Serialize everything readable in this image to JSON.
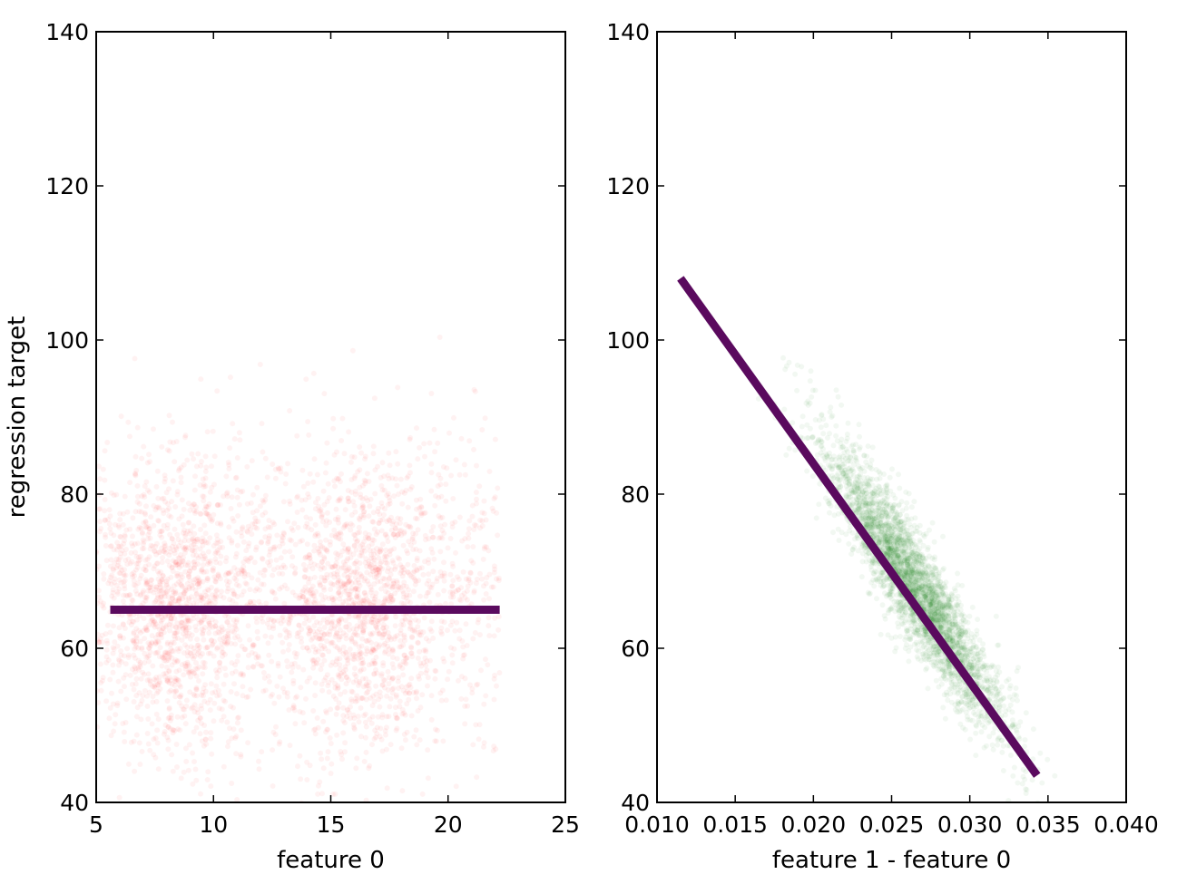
{
  "chart_data": [
    {
      "type": "scatter",
      "title": "",
      "xlabel": "feature 0",
      "ylabel": "regression target",
      "xlim": [
        5,
        25
      ],
      "ylim": [
        40,
        140
      ],
      "xticks": [
        5,
        10,
        15,
        20,
        25
      ],
      "xtick_labels": [
        "5",
        "10",
        "15",
        "20",
        "25"
      ],
      "yticks": [
        40,
        60,
        80,
        100,
        120,
        140
      ],
      "ytick_labels": [
        "40",
        "60",
        "80",
        "100",
        "120",
        "140"
      ],
      "grid": false,
      "series": [
        {
          "kind": "scatter",
          "color": "#ff0000",
          "opacity": 0.05,
          "x_range": [
            5,
            22.2
          ],
          "clusters": [
            {
              "x_center": 8.5,
              "y_center": 65,
              "y_spread": 9
            },
            {
              "x_center": 16.5,
              "y_center": 65,
              "y_spread": 9
            }
          ],
          "y_band": [
            48,
            95
          ]
        },
        {
          "kind": "fit-line",
          "color": "#5a0a5e",
          "x": [
            5.6,
            22.2
          ],
          "y": [
            65,
            65
          ]
        }
      ]
    },
    {
      "type": "scatter",
      "title": "",
      "xlabel": "feature 1 - feature 0",
      "ylabel": "",
      "xlim": [
        0.01,
        0.04
      ],
      "ylim": [
        40,
        140
      ],
      "xticks": [
        0.01,
        0.015,
        0.02,
        0.025,
        0.03,
        0.035,
        0.04
      ],
      "xtick_labels": [
        "0.010",
        "0.015",
        "0.020",
        "0.025",
        "0.030",
        "0.035",
        "0.040"
      ],
      "yticks": [
        40,
        60,
        80,
        100,
        120,
        140
      ],
      "ytick_labels": [
        "40",
        "60",
        "80",
        "100",
        "120",
        "140"
      ],
      "grid": false,
      "series": [
        {
          "kind": "scatter",
          "color": "#007f00",
          "opacity": 0.05,
          "x_range": [
            0.014,
            0.037
          ],
          "trend": {
            "x_at_y100": 0.0175,
            "x_at_y50": 0.0315
          }
        },
        {
          "kind": "fit-line",
          "color": "#5a0a5e",
          "x": [
            0.0115,
            0.0343
          ],
          "y": [
            108,
            43.5
          ]
        }
      ]
    }
  ]
}
